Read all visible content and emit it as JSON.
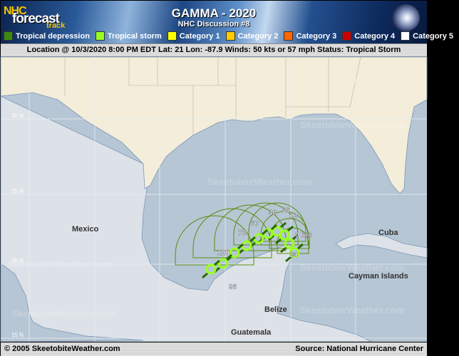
{
  "header": {
    "logo": {
      "line1": "NHC",
      "line2": "forecast",
      "line3": "track"
    },
    "title": "GAMMA - 2020",
    "subtitle": "NHC Discussion #8",
    "legend": [
      {
        "label": "Tropical depression",
        "color": "#3d8a10"
      },
      {
        "label": "Tropical storm",
        "color": "#99ff22"
      },
      {
        "label": "Category 1",
        "color": "#ffff00"
      },
      {
        "label": "Category 2",
        "color": "#ffcc00"
      },
      {
        "label": "Category 3",
        "color": "#ff6600"
      },
      {
        "label": "Category 4",
        "color": "#cc0000"
      },
      {
        "label": "Category 5",
        "color": "#ffffff"
      }
    ]
  },
  "status": {
    "text": "Location @ 10/3/2020 8:00 PM EDT  Lat: 21 Lon: -87.9   Winds: 50 kts or 57 mph  Status: Tropical Storm"
  },
  "map": {
    "latitude_labels": [
      "30 N",
      "25 N",
      "20 N",
      "15 N"
    ],
    "place_labels": {
      "mexico": "Mexico",
      "cuba": "Cuba",
      "cayman": "Cayman Islands",
      "belize": "Belize",
      "guatemala": "Guatemala"
    },
    "watermark": "SkeetobiteWeather.com",
    "forecast_hour_labels": [
      "0 hrs",
      "12",
      "24",
      "36",
      "48",
      "60",
      "72",
      "96",
      "120"
    ],
    "track_color": "#99ff22",
    "cone_color": "#5a8c10"
  },
  "footer": {
    "copyright": "© 2005 SkeetobiteWeather.com",
    "source": "Source: National Hurricane Center"
  }
}
